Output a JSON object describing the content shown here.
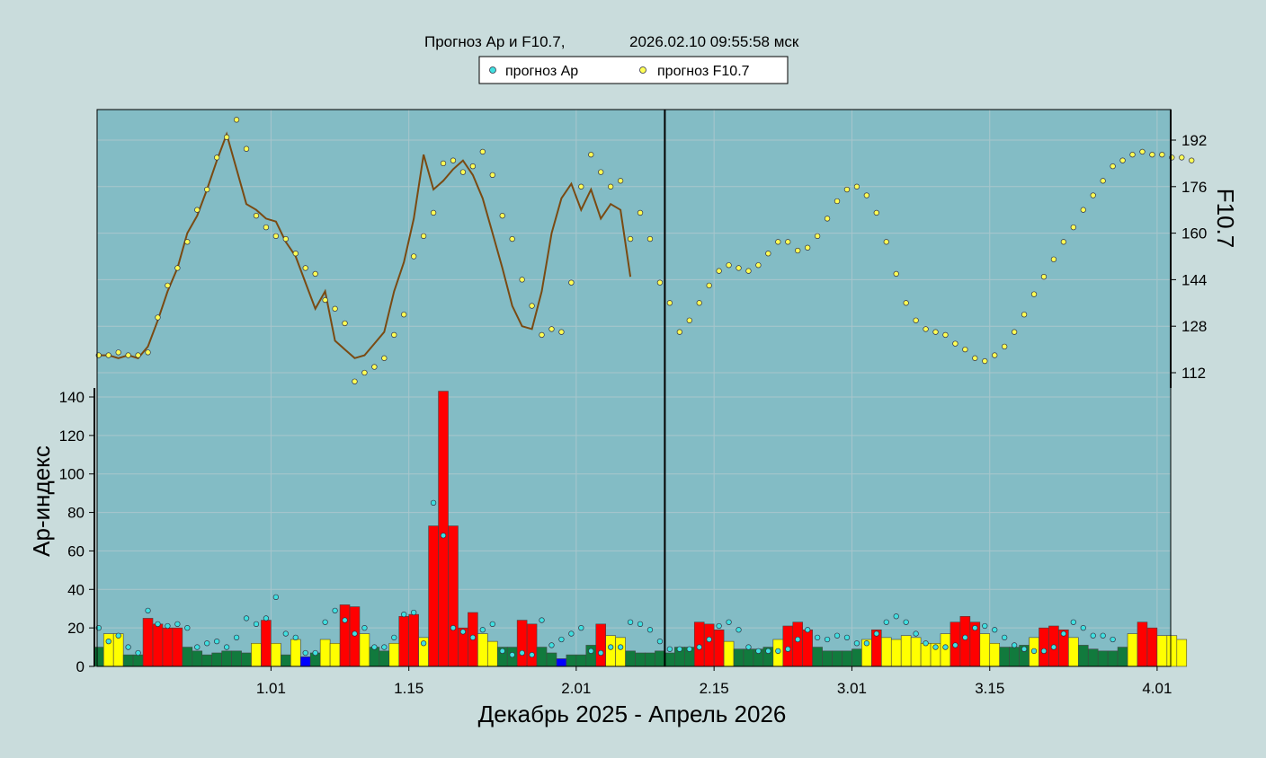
{
  "chart_data": {
    "type": "bar",
    "title": "Прогноз Ap и F10.7,",
    "timestamp": "2026.02.10 09:55:58 мск",
    "xlabel": "Декабрь 2025 - Апрель 2026",
    "ylabel": "Ар-индекс",
    "y2label": "F10.7",
    "legend": {
      "placement": "top-center",
      "entries": [
        "прогноз Ap",
        "прогноз F10.7"
      ]
    },
    "grid": true,
    "x_ticks": [
      "1.01",
      "1.15",
      "2.01",
      "2.15",
      "3.01",
      "3.15",
      "4.01"
    ],
    "ap_ticks": [
      "0",
      "20",
      "40",
      "60",
      "80",
      "100",
      "120",
      "140"
    ],
    "f107_ticks": [
      "112",
      "128",
      "144",
      "160",
      "176",
      "192"
    ],
    "ap_ylim": [
      0,
      142
    ],
    "f107_ylim": [
      112,
      192
    ],
    "start_date": "2025-12-14",
    "forecast_start": "2026-02-10",
    "colors": {
      "plot_bg": "#83bcc5",
      "page_bg": "#c9dcdc",
      "quiet": "#117a3d",
      "unsettled": "#ffff00",
      "active": "#ff0000",
      "very_quiet": "#0000ff",
      "ap_marker": "#40e0e0",
      "f107_marker": "#ffff55",
      "f107_line": "#7a4a12"
    },
    "ap_observed": [
      10,
      17,
      17,
      6,
      6,
      25,
      22,
      20,
      20,
      10,
      8,
      6,
      7,
      8,
      8,
      7,
      12,
      24,
      12,
      6,
      14,
      5,
      7,
      14,
      12,
      32,
      31,
      17,
      10,
      8,
      12,
      26,
      27,
      15,
      73,
      143,
      73,
      20,
      28,
      17,
      13,
      10,
      10,
      24,
      22,
      10,
      7,
      4,
      6,
      6,
      11,
      22,
      16,
      15,
      8,
      7,
      7
    ],
    "ap_forecast_dots": [
      20,
      13,
      16,
      10,
      7,
      29,
      22,
      21,
      22,
      20,
      10,
      12,
      13,
      10,
      15,
      25,
      22,
      25,
      36,
      17,
      15,
      7,
      7,
      23,
      29,
      24,
      17,
      20,
      10,
      10,
      15,
      27,
      28,
      12,
      85,
      68,
      20,
      18,
      15,
      19,
      22,
      8,
      6,
      7,
      6,
      24,
      11,
      14,
      17,
      20,
      8,
      7,
      10,
      10,
      23,
      22,
      19,
      13,
      9,
      9,
      9,
      10,
      14,
      21,
      23,
      19,
      10,
      8,
      8,
      8,
      9,
      14,
      19,
      15,
      14,
      16,
      15,
      12,
      12,
      17,
      23,
      26,
      23,
      17,
      12,
      10,
      10,
      11,
      15,
      20,
      21,
      19,
      15,
      11,
      9,
      8,
      8,
      10,
      17,
      23,
      20,
      16,
      16,
      14
    ],
    "ap_forecast": [
      8,
      7,
      10,
      10,
      23,
      22,
      19,
      13,
      9,
      9,
      9,
      10,
      14,
      21,
      23,
      19,
      10,
      8,
      8,
      8,
      9,
      14,
      19,
      15,
      14,
      16,
      15,
      12,
      12,
      17,
      23,
      26,
      23,
      17,
      12,
      10,
      10,
      11,
      15,
      20,
      21,
      19,
      15,
      11,
      9,
      8,
      8,
      10,
      17,
      23,
      20,
      16,
      16,
      14
    ],
    "f107_observed": [
      118,
      118,
      117,
      118,
      117,
      121,
      130,
      140,
      148,
      160,
      166,
      175,
      185,
      194,
      182,
      170,
      168,
      165,
      164,
      157,
      152,
      143,
      134,
      140,
      123,
      120,
      117,
      118,
      122,
      126,
      140,
      150,
      165,
      187,
      175,
      178,
      182,
      185,
      180,
      172,
      160,
      148,
      135,
      128,
      127,
      140,
      160,
      172,
      177,
      168,
      175,
      165,
      170,
      168,
      145
    ],
    "f107_observed_dots": [
      118,
      118,
      119,
      118,
      118,
      119,
      131,
      142,
      148,
      157,
      168,
      175,
      186,
      193,
      199,
      189,
      166,
      162,
      159,
      158,
      153,
      148,
      146,
      137,
      134,
      129,
      109,
      112,
      114,
      117,
      125,
      132,
      152,
      159,
      167,
      184,
      185,
      181,
      183,
      188,
      180,
      166,
      158,
      144,
      135,
      125,
      127,
      126,
      143,
      176,
      187,
      181,
      176,
      178,
      158,
      167,
      158,
      143,
      136,
      126,
      130,
      136,
      142,
      147,
      149,
      148,
      147,
      149,
      153,
      157,
      157,
      154,
      155,
      159,
      165,
      171,
      175,
      176,
      173,
      167,
      157,
      146,
      136,
      130,
      127,
      126,
      125,
      122,
      120,
      117,
      116,
      118,
      121,
      126,
      132,
      139,
      145,
      151,
      157,
      162,
      168,
      173,
      178,
      183,
      185,
      187,
      188,
      187,
      187,
      186,
      186,
      185
    ]
  }
}
